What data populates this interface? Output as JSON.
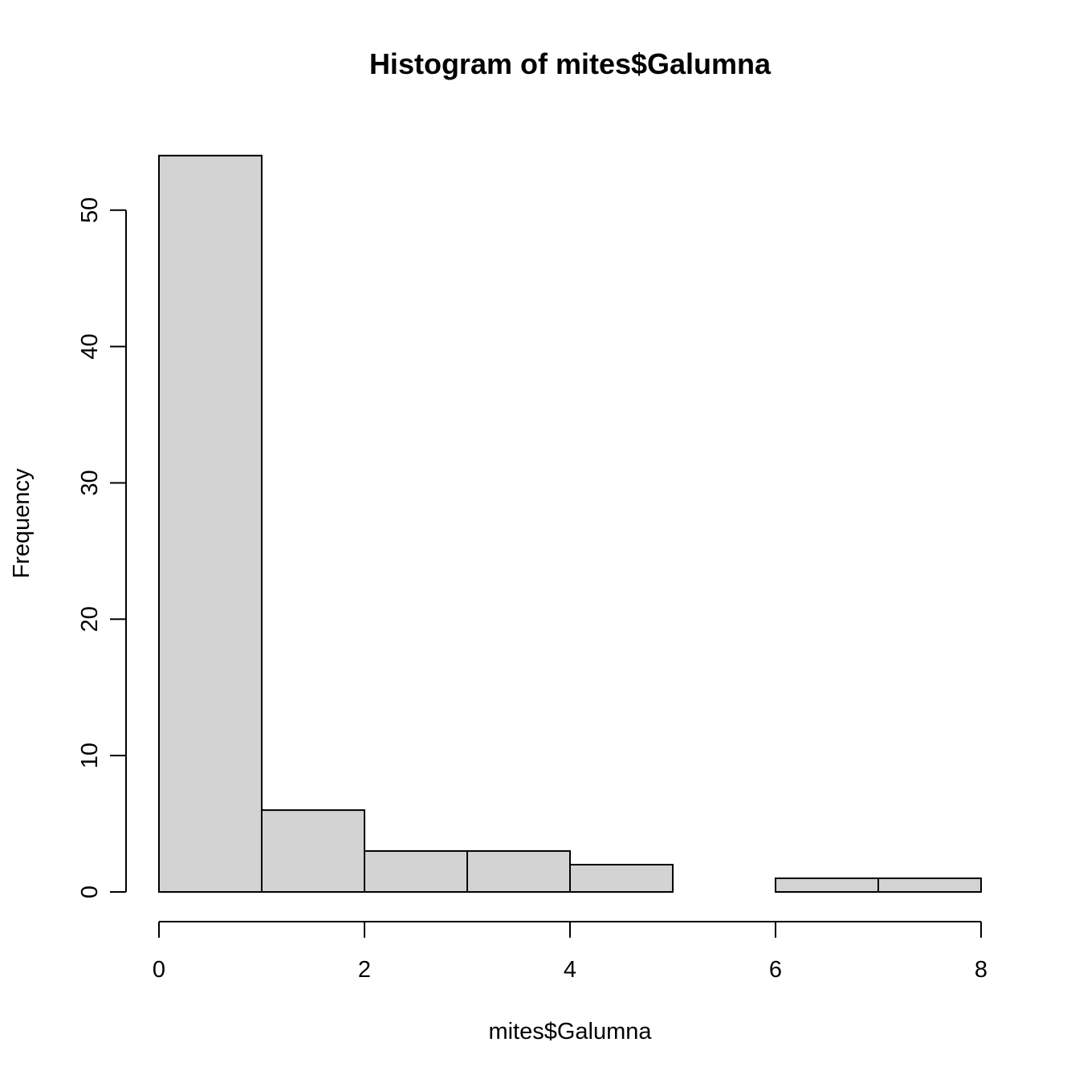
{
  "chart_data": {
    "type": "bar",
    "title": "Histogram of mites$Galumna",
    "xlabel": "mites$Galumna",
    "ylabel": "Frequency",
    "bins": [
      {
        "x0": 0,
        "x1": 1,
        "count": 54
      },
      {
        "x0": 1,
        "x1": 2,
        "count": 6
      },
      {
        "x0": 2,
        "x1": 3,
        "count": 3
      },
      {
        "x0": 3,
        "x1": 4,
        "count": 3
      },
      {
        "x0": 4,
        "x1": 5,
        "count": 2
      },
      {
        "x0": 5,
        "x1": 6,
        "count": 0
      },
      {
        "x0": 6,
        "x1": 7,
        "count": 1
      },
      {
        "x0": 7,
        "x1": 8,
        "count": 1
      }
    ],
    "xlim": [
      0,
      8
    ],
    "ylim": [
      0,
      54
    ],
    "x_ticks": [
      "0",
      "2",
      "4",
      "6",
      "8"
    ],
    "y_ticks": [
      "0",
      "10",
      "20",
      "30",
      "40",
      "50"
    ],
    "bar_color": "#d3d3d3",
    "grid": false,
    "legend": "none"
  }
}
